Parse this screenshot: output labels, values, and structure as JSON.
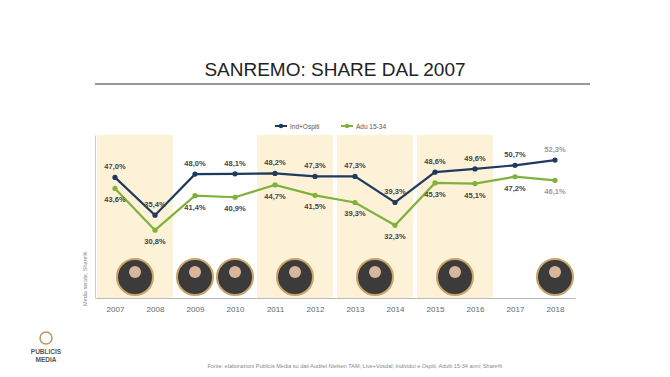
{
  "chart_data": {
    "type": "line",
    "title": "SANREMO: SHARE DAL 2007",
    "y_label": "Media serate, Share%",
    "source": "Fonte: elaborazioni Publicis Media su dati Auditel Nielsen TAM; Live+Vosdal; Individui e Ospiti, Adulti 15-34 anni; Share%",
    "logo_text": [
      "PUBLICIS",
      "MEDIA"
    ],
    "categories": [
      "2007",
      "2008",
      "2009",
      "2010",
      "2011",
      "2012",
      "2013",
      "2014",
      "2015",
      "2016",
      "2017",
      "2018"
    ],
    "series": [
      {
        "name": "Ind+Ospiti",
        "color": "#1f3a5f",
        "marker": "circle",
        "values": [
          47.0,
          35.4,
          48.0,
          48.1,
          48.2,
          47.3,
          47.3,
          39.3,
          48.6,
          49.6,
          50.7,
          52.3
        ],
        "value_labels": [
          "47,0%",
          "35,4%",
          "48,0%",
          "48,1%",
          "48,2%",
          "47,3%",
          "47,3%",
          "39,3%",
          "48,6%",
          "49,6%",
          "50,7%",
          "52,3%"
        ]
      },
      {
        "name": "Adu 15-34",
        "color": "#7fb13d",
        "marker": "circle",
        "values": [
          43.6,
          30.8,
          41.4,
          40.9,
          44.7,
          41.5,
          39.3,
          32.3,
          45.3,
          45.1,
          47.2,
          46.1
        ],
        "value_labels": [
          "43,6%",
          "30,8%",
          "41,4%",
          "40,9%",
          "44,7%",
          "41,5%",
          "39,3%",
          "32,3%",
          "45,3%",
          "45,1%",
          "47,2%",
          "46,1%"
        ]
      }
    ],
    "ylim": [
      10,
      60
    ],
    "grid": false,
    "legend": "top",
    "data_labels": true,
    "tick_labels": "x"
  }
}
